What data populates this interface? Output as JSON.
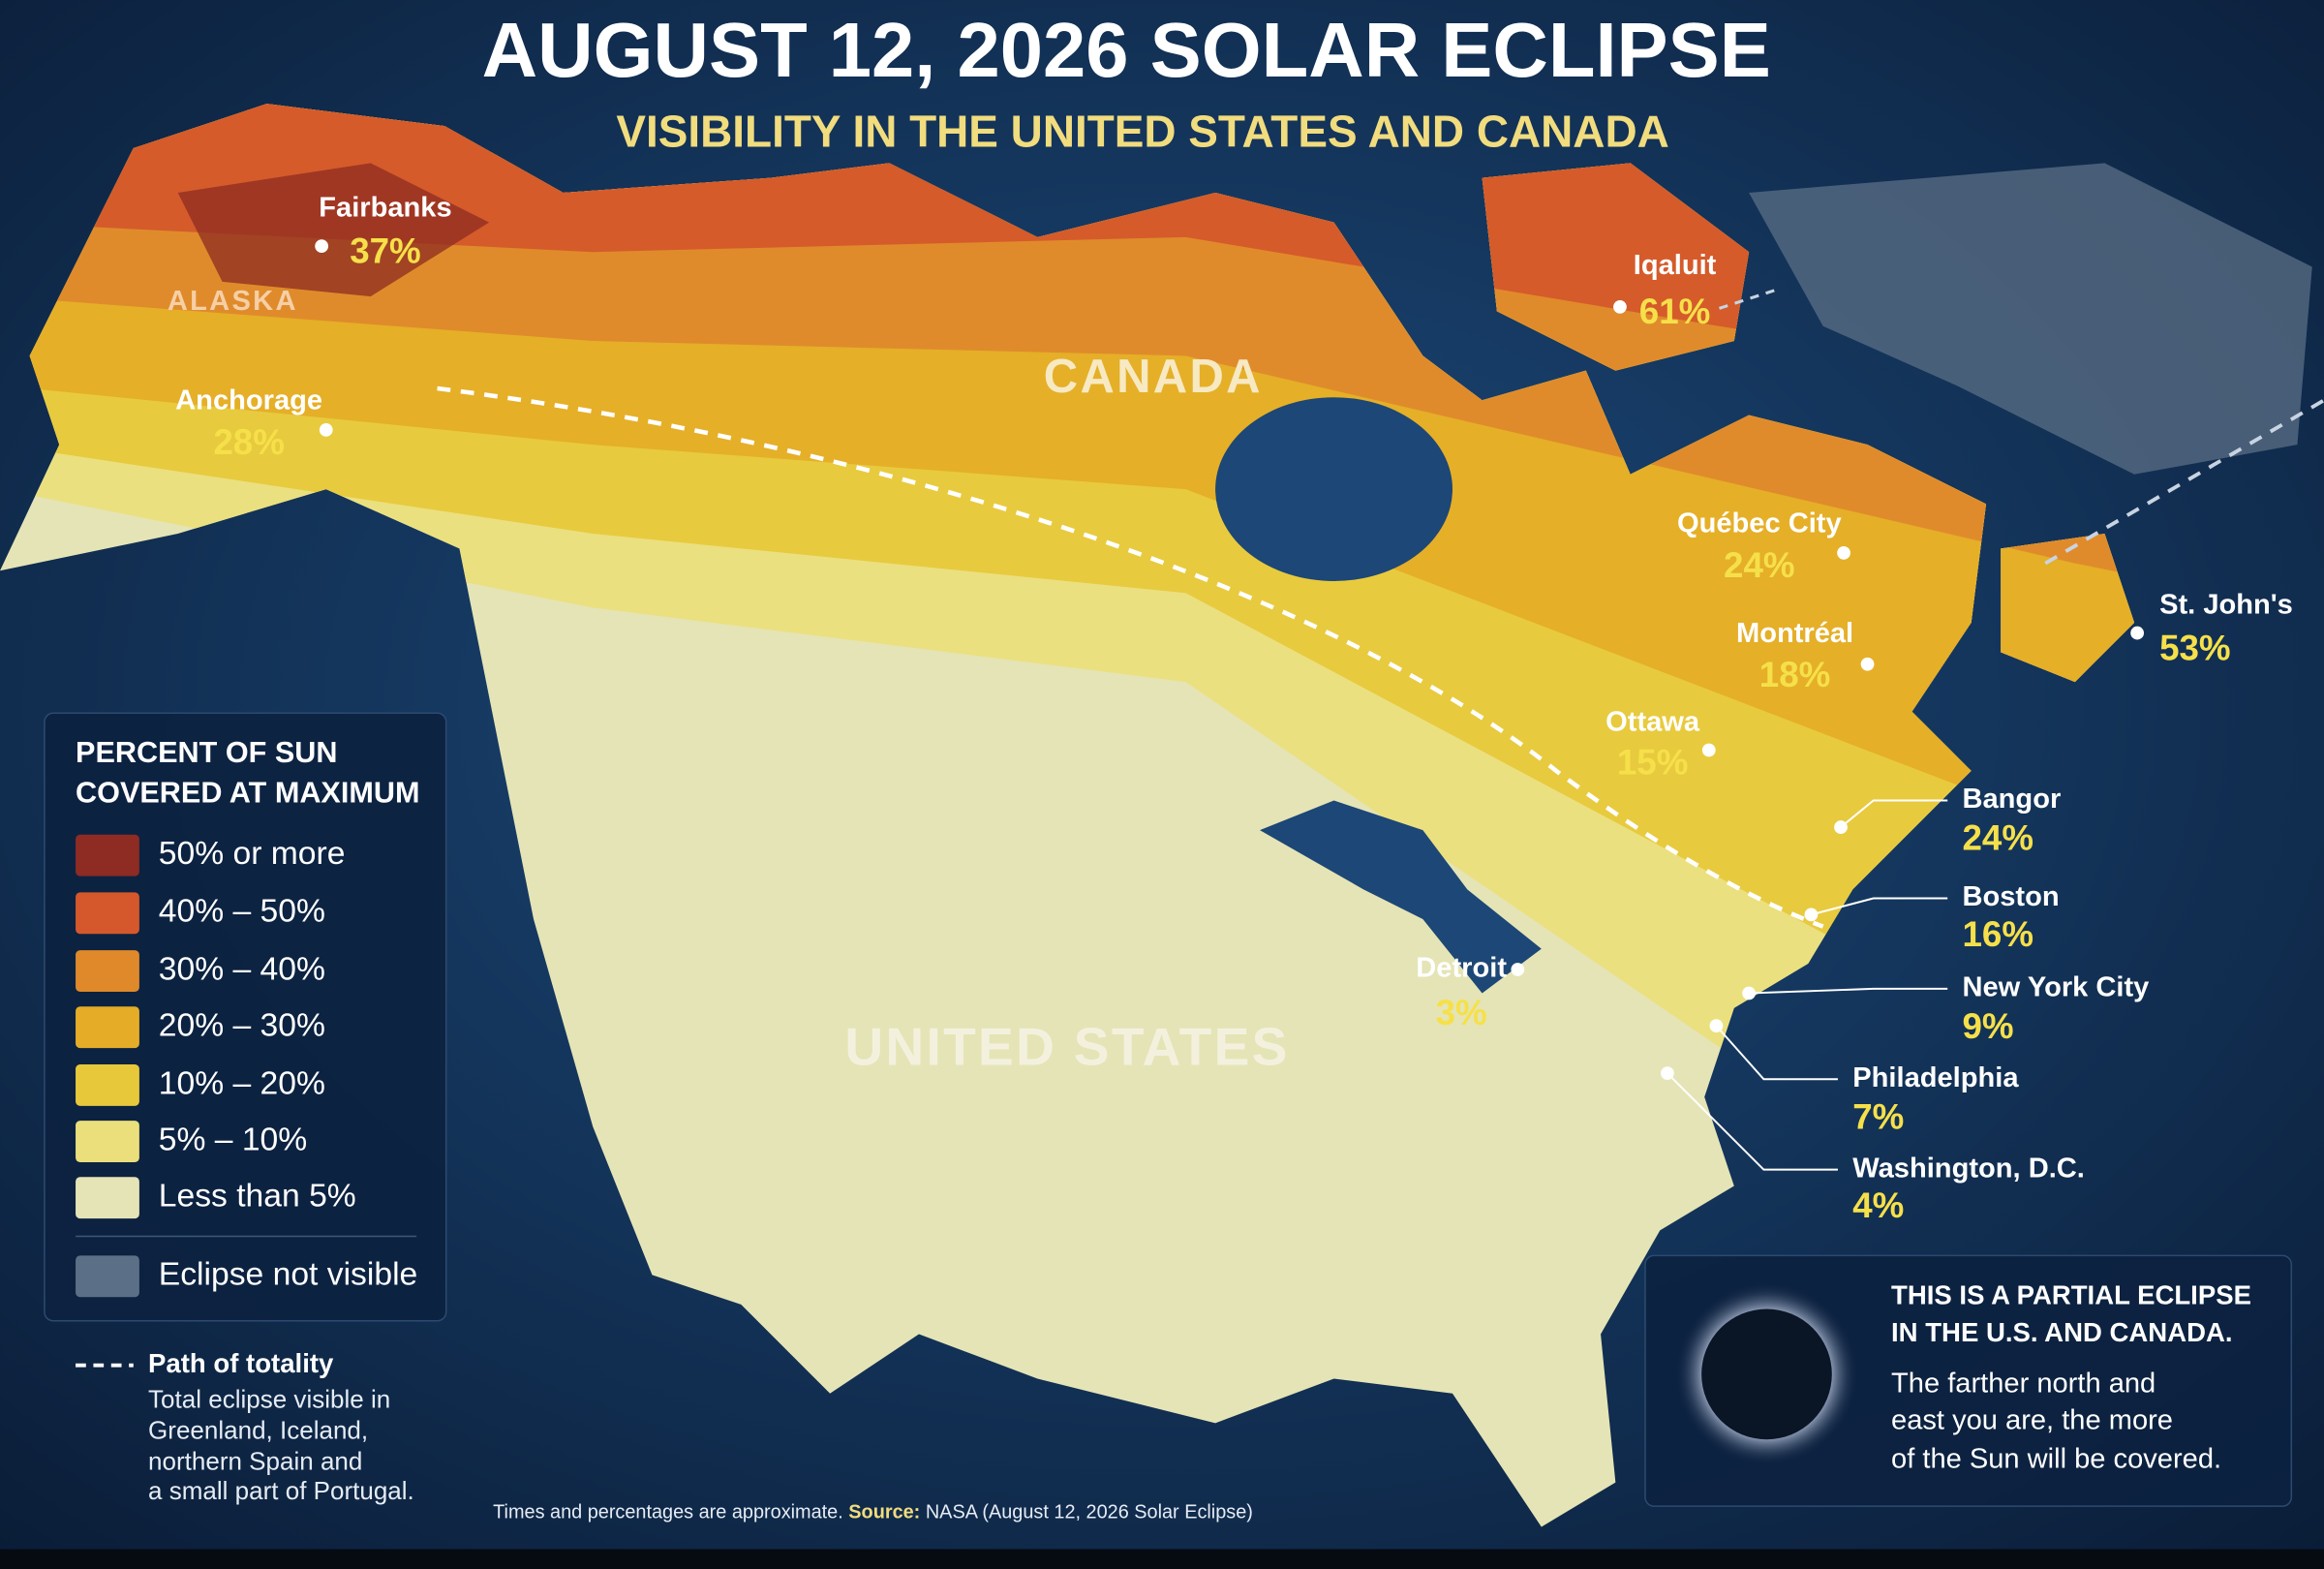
{
  "title": "AUGUST 12, 2026 SOLAR ECLIPSE",
  "subtitle": "VISIBILITY IN THE UNITED STATES AND CANADA",
  "regions": [
    "ALASKA",
    "CANADA",
    "UNITED STATES"
  ],
  "cities": [
    {
      "name": "Fairbanks",
      "percent": "37%"
    },
    {
      "name": "Anchorage",
      "percent": "28%"
    },
    {
      "name": "Iqaluit",
      "percent": "61%"
    },
    {
      "name": "Québec City",
      "percent": "24%"
    },
    {
      "name": "Montréal",
      "percent": "18%"
    },
    {
      "name": "Ottawa",
      "percent": "15%"
    },
    {
      "name": "St. John's",
      "percent": "53%"
    },
    {
      "name": "Bangor",
      "percent": "24%"
    },
    {
      "name": "Boston",
      "percent": "16%"
    },
    {
      "name": "New York City",
      "percent": "9%"
    },
    {
      "name": "Philadelphia",
      "percent": "7%"
    },
    {
      "name": "Washington, D.C.",
      "percent": "4%"
    },
    {
      "name": "Detroit",
      "percent": "3%"
    }
  ],
  "legend": {
    "title_lines": [
      "PERCENT OF SUN",
      "COVERED AT MAXIMUM"
    ],
    "items": [
      {
        "label": "50% or more",
        "color": "#8e2b22"
      },
      {
        "label": "40% – 50%",
        "color": "#d4582b"
      },
      {
        "label": "30% – 40%",
        "color": "#df892b"
      },
      {
        "label": "20% – 30%",
        "color": "#e5ad27"
      },
      {
        "label": "10% – 20%",
        "color": "#e8c83b"
      },
      {
        "label": "5% – 10%",
        "color": "#ebdf7c"
      },
      {
        "label": "Less than 5%",
        "color": "#e5e4b6"
      }
    ],
    "not_visible": {
      "label": "Eclipse not visible",
      "color": "#5b6f86"
    }
  },
  "totality": {
    "title": "Path of totality",
    "lines": [
      "Total eclipse visible in",
      "Greenland, Iceland,",
      "northern Spain and",
      "a small part of Portugal."
    ]
  },
  "info_box": {
    "heading_lines": [
      "THIS IS A PARTIAL ECLIPSE",
      "IN THE U.S. AND CANADA."
    ],
    "body_lines": [
      "The farther north and",
      "east you are, the more",
      "of the Sun will be covered."
    ]
  },
  "footer": {
    "note": "Times and percentages are approximate.",
    "source_label": "Source:",
    "source": "NASA (August 12, 2026 Solar Eclipse)"
  }
}
